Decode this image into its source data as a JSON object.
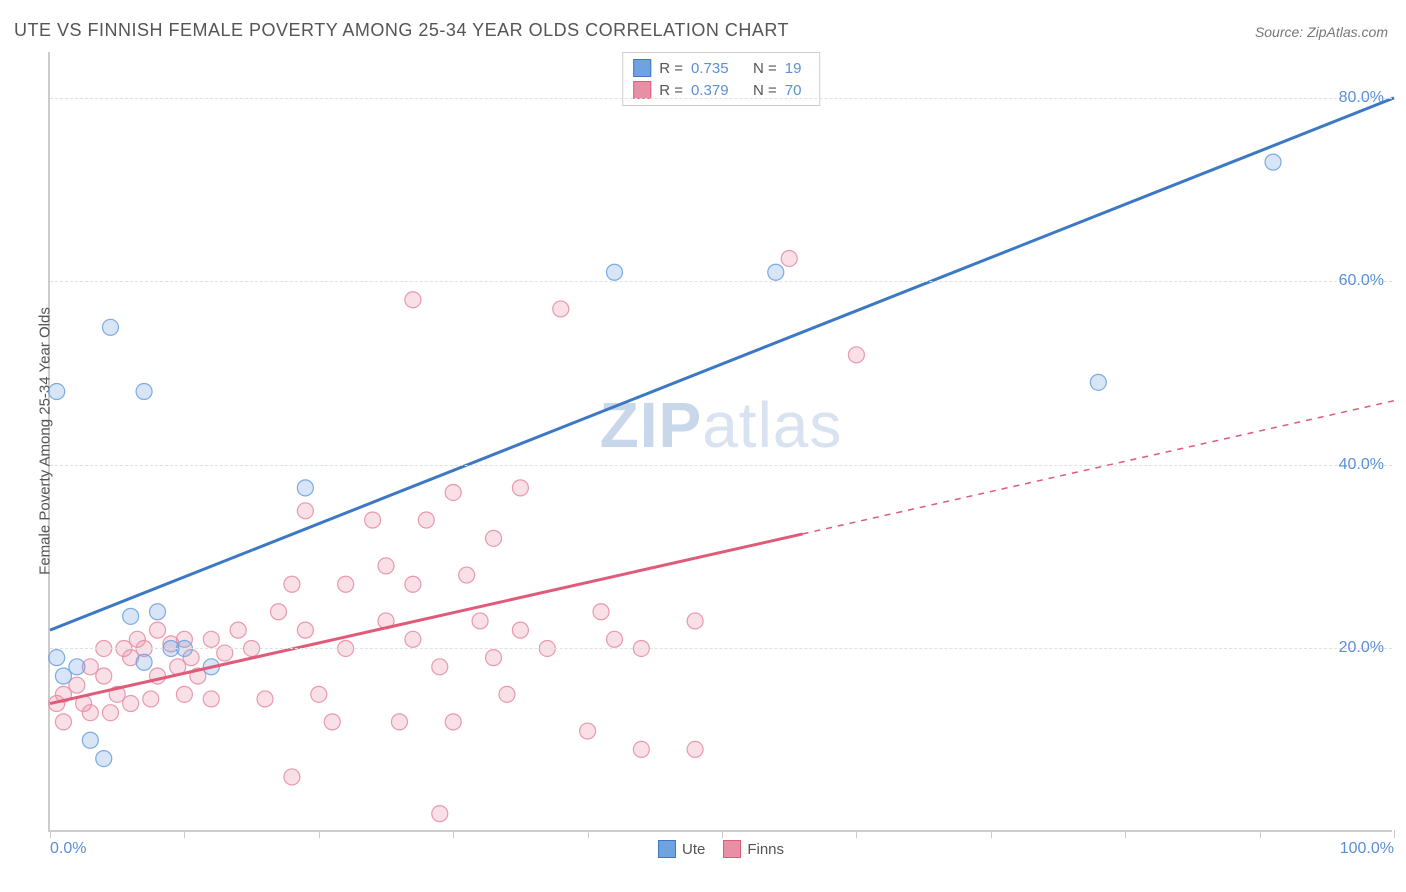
{
  "title": "UTE VS FINNISH FEMALE POVERTY AMONG 25-34 YEAR OLDS CORRELATION CHART",
  "source_label": "Source: ZipAtlas.com",
  "ylabel": "Female Poverty Among 25-34 Year Olds",
  "watermark_bold": "ZIP",
  "watermark_light": "atlas",
  "chart": {
    "type": "scatter",
    "xlim": [
      0,
      100
    ],
    "ylim": [
      0,
      85
    ],
    "x_tick_step": 10,
    "y_grid_lines": [
      20,
      40,
      60,
      80
    ],
    "x_tick_labels": {
      "0": "0.0%",
      "100": "100.0%"
    },
    "y_tick_labels": {
      "20": "20.0%",
      "40": "40.0%",
      "60": "60.0%",
      "80": "80.0%"
    },
    "background_color": "#ffffff",
    "grid_color": "#e0e0e0",
    "axis_color": "#cccccc",
    "title_fontsize": 18,
    "label_fontsize": 15,
    "tick_label_color": "#5b8fd6",
    "marker_radius": 8,
    "marker_fill_opacity": 0.28,
    "marker_stroke_opacity": 0.9,
    "marker_stroke_width": 1.2,
    "trend_line_width": 3,
    "series": [
      {
        "name": "Ute",
        "color": "#6fa3e0",
        "line_color": "#3c78c3",
        "R": "0.735",
        "N": "19",
        "trend": {
          "x1": 0,
          "y1": 22,
          "x2": 100,
          "y2": 80,
          "dash_from_x": 100
        },
        "points": [
          [
            0.5,
            19
          ],
          [
            0.5,
            48
          ],
          [
            1,
            17
          ],
          [
            2,
            18
          ],
          [
            3,
            10
          ],
          [
            4,
            8
          ],
          [
            4.5,
            55
          ],
          [
            6,
            23.5
          ],
          [
            7,
            18.5
          ],
          [
            7,
            48
          ],
          [
            8,
            24
          ],
          [
            9,
            20
          ],
          [
            10,
            20
          ],
          [
            12,
            18
          ],
          [
            19,
            37.5
          ],
          [
            42,
            61
          ],
          [
            54,
            61
          ],
          [
            78,
            49
          ],
          [
            91,
            73
          ]
        ]
      },
      {
        "name": "Finns",
        "color": "#e78fa6",
        "line_color": "#e05a7a",
        "R": "0.379",
        "N": "70",
        "trend": {
          "x1": 0,
          "y1": 14,
          "x2": 100,
          "y2": 47,
          "dash_from_x": 56
        },
        "points": [
          [
            0.5,
            14
          ],
          [
            1,
            15
          ],
          [
            1,
            12
          ],
          [
            2,
            16
          ],
          [
            2.5,
            14
          ],
          [
            3,
            18
          ],
          [
            3,
            13
          ],
          [
            4,
            20
          ],
          [
            4,
            17
          ],
          [
            4.5,
            13
          ],
          [
            5,
            15
          ],
          [
            5.5,
            20
          ],
          [
            6,
            19
          ],
          [
            6,
            14
          ],
          [
            6.5,
            21
          ],
          [
            7,
            20
          ],
          [
            7.5,
            14.5
          ],
          [
            8,
            22
          ],
          [
            8,
            17
          ],
          [
            9,
            20.5
          ],
          [
            9.5,
            18
          ],
          [
            10,
            21
          ],
          [
            10,
            15
          ],
          [
            10.5,
            19
          ],
          [
            11,
            17
          ],
          [
            12,
            21
          ],
          [
            12,
            14.5
          ],
          [
            13,
            19.5
          ],
          [
            14,
            22
          ],
          [
            15,
            20
          ],
          [
            16,
            14.5
          ],
          [
            17,
            24
          ],
          [
            18,
            6
          ],
          [
            18,
            27
          ],
          [
            19,
            35
          ],
          [
            19,
            22
          ],
          [
            20,
            15
          ],
          [
            21,
            12
          ],
          [
            22,
            27
          ],
          [
            22,
            20
          ],
          [
            24,
            34
          ],
          [
            25,
            29
          ],
          [
            25,
            23
          ],
          [
            26,
            12
          ],
          [
            27,
            27
          ],
          [
            27,
            21
          ],
          [
            27,
            58
          ],
          [
            28,
            34
          ],
          [
            29,
            18
          ],
          [
            29,
            2
          ],
          [
            30,
            37
          ],
          [
            30,
            12
          ],
          [
            31,
            28
          ],
          [
            32,
            23
          ],
          [
            33,
            19
          ],
          [
            33,
            32
          ],
          [
            34,
            15
          ],
          [
            35,
            37.5
          ],
          [
            35,
            22
          ],
          [
            37,
            20
          ],
          [
            38,
            57
          ],
          [
            40,
            11
          ],
          [
            41,
            24
          ],
          [
            42,
            21
          ],
          [
            44,
            9
          ],
          [
            44,
            20
          ],
          [
            48,
            9
          ],
          [
            48,
            23
          ],
          [
            55,
            62.5
          ],
          [
            60,
            52
          ]
        ]
      }
    ]
  },
  "legend_top": {
    "r_label": "R =",
    "n_label": "N ="
  },
  "legend_bottom": [
    {
      "label": "Ute",
      "color": "#6fa3e0",
      "border": "#3c78c3"
    },
    {
      "label": "Finns",
      "color": "#e78fa6",
      "border": "#e05a7a"
    }
  ]
}
